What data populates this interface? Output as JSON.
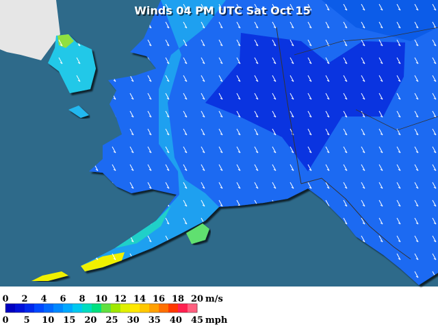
{
  "title": "Winds 04 PM UTC Sat Oct 15",
  "legend": {
    "ms_labels": [
      0,
      2,
      4,
      6,
      8,
      10,
      12,
      14,
      16,
      18,
      20
    ],
    "ms_unit": "m/s",
    "mph_labels": [
      0,
      5,
      10,
      15,
      20,
      25,
      30,
      35,
      40,
      45
    ],
    "mph_unit": "mph"
  }
}
